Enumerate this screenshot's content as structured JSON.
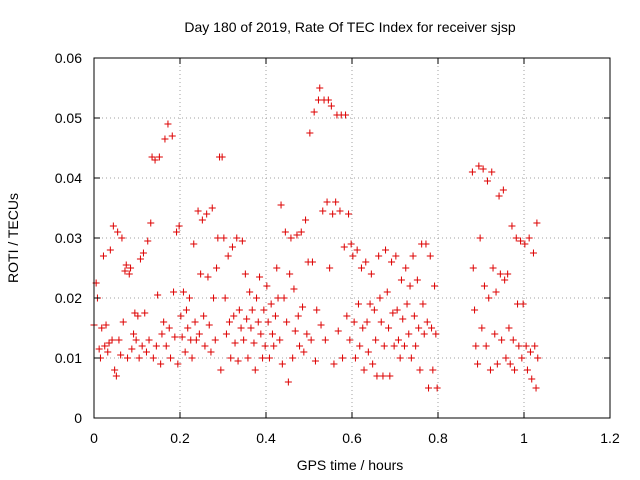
{
  "chart_data": {
    "type": "scatter",
    "title": "Day 180 of 2019, Rate Of TEC Index for receiver sjsp",
    "xlabel": "GPS time / hours",
    "ylabel": "ROTI / TECUs",
    "xlim": [
      0,
      1.2
    ],
    "ylim": [
      0,
      0.06
    ],
    "x_ticks": [
      "0",
      "0.2",
      "0.4",
      "0.6",
      "0.8",
      "1",
      "1.2"
    ],
    "y_ticks": [
      "0",
      "0.01",
      "0.02",
      "0.03",
      "0.04",
      "0.05",
      "0.06"
    ],
    "grid": true,
    "marker": "+",
    "color": "#dd0000",
    "series": [
      {
        "name": "ROTI",
        "points": [
          [
            0.0,
            0.0155
          ],
          [
            0.005,
            0.0225
          ],
          [
            0.008,
            0.02
          ],
          [
            0.012,
            0.0115
          ],
          [
            0.015,
            0.01
          ],
          [
            0.018,
            0.015
          ],
          [
            0.022,
            0.027
          ],
          [
            0.025,
            0.012
          ],
          [
            0.028,
            0.0155
          ],
          [
            0.032,
            0.011
          ],
          [
            0.035,
            0.0125
          ],
          [
            0.038,
            0.028
          ],
          [
            0.042,
            0.013
          ],
          [
            0.045,
            0.032
          ],
          [
            0.048,
            0.008
          ],
          [
            0.052,
            0.007
          ],
          [
            0.055,
            0.031
          ],
          [
            0.058,
            0.013
          ],
          [
            0.062,
            0.0105
          ],
          [
            0.065,
            0.03
          ],
          [
            0.068,
            0.016
          ],
          [
            0.072,
            0.0245
          ],
          [
            0.075,
            0.0255
          ],
          [
            0.078,
            0.01
          ],
          [
            0.082,
            0.024
          ],
          [
            0.085,
            0.025
          ],
          [
            0.088,
            0.0115
          ],
          [
            0.092,
            0.014
          ],
          [
            0.095,
            0.0175
          ],
          [
            0.098,
            0.013
          ],
          [
            0.102,
            0.017
          ],
          [
            0.105,
            0.01
          ],
          [
            0.108,
            0.0265
          ],
          [
            0.112,
            0.012
          ],
          [
            0.115,
            0.0275
          ],
          [
            0.118,
            0.0175
          ],
          [
            0.122,
            0.011
          ],
          [
            0.125,
            0.0295
          ],
          [
            0.128,
            0.013
          ],
          [
            0.132,
            0.0325
          ],
          [
            0.135,
            0.0435
          ],
          [
            0.138,
            0.01
          ],
          [
            0.142,
            0.043
          ],
          [
            0.145,
            0.012
          ],
          [
            0.148,
            0.0205
          ],
          [
            0.152,
            0.0435
          ],
          [
            0.155,
            0.009
          ],
          [
            0.158,
            0.014
          ],
          [
            0.162,
            0.016
          ],
          [
            0.165,
            0.0465
          ],
          [
            0.168,
            0.012
          ],
          [
            0.172,
            0.049
          ],
          [
            0.175,
            0.015
          ],
          [
            0.178,
            0.01
          ],
          [
            0.182,
            0.047
          ],
          [
            0.185,
            0.021
          ],
          [
            0.188,
            0.0135
          ],
          [
            0.192,
            0.031
          ],
          [
            0.195,
            0.009
          ],
          [
            0.198,
            0.032
          ],
          [
            0.202,
            0.017
          ],
          [
            0.205,
            0.0135
          ],
          [
            0.208,
            0.021
          ],
          [
            0.212,
            0.011
          ],
          [
            0.215,
            0.018
          ],
          [
            0.218,
            0.015
          ],
          [
            0.222,
            0.02
          ],
          [
            0.225,
            0.013
          ],
          [
            0.228,
            0.01
          ],
          [
            0.232,
            0.029
          ],
          [
            0.235,
            0.016
          ],
          [
            0.238,
            0.013
          ],
          [
            0.242,
            0.0345
          ],
          [
            0.245,
            0.014
          ],
          [
            0.248,
            0.024
          ],
          [
            0.252,
            0.033
          ],
          [
            0.255,
            0.017
          ],
          [
            0.258,
            0.012
          ],
          [
            0.262,
            0.034
          ],
          [
            0.265,
            0.0235
          ],
          [
            0.268,
            0.0155
          ],
          [
            0.272,
            0.011
          ],
          [
            0.275,
            0.035
          ],
          [
            0.278,
            0.02
          ],
          [
            0.282,
            0.013
          ],
          [
            0.285,
            0.025
          ],
          [
            0.288,
            0.03
          ],
          [
            0.292,
            0.0435
          ],
          [
            0.295,
            0.008
          ],
          [
            0.298,
            0.0435
          ],
          [
            0.302,
            0.03
          ],
          [
            0.305,
            0.02
          ],
          [
            0.308,
            0.014
          ],
          [
            0.312,
            0.027
          ],
          [
            0.315,
            0.016
          ],
          [
            0.318,
            0.01
          ],
          [
            0.322,
            0.0285
          ],
          [
            0.325,
            0.017
          ],
          [
            0.328,
            0.0125
          ],
          [
            0.332,
            0.03
          ],
          [
            0.335,
            0.0095
          ],
          [
            0.338,
            0.018
          ],
          [
            0.342,
            0.015
          ],
          [
            0.345,
            0.0295
          ],
          [
            0.348,
            0.013
          ],
          [
            0.352,
            0.024
          ],
          [
            0.355,
            0.0165
          ],
          [
            0.358,
            0.01
          ],
          [
            0.362,
            0.021
          ],
          [
            0.365,
            0.015
          ],
          [
            0.368,
            0.018
          ],
          [
            0.372,
            0.0125
          ],
          [
            0.375,
            0.008
          ],
          [
            0.378,
            0.02
          ],
          [
            0.382,
            0.016
          ],
          [
            0.385,
            0.0235
          ],
          [
            0.388,
            0.014
          ],
          [
            0.392,
            0.01
          ],
          [
            0.395,
            0.018
          ],
          [
            0.398,
            0.012
          ],
          [
            0.402,
            0.022
          ],
          [
            0.405,
            0.016
          ],
          [
            0.408,
            0.01
          ],
          [
            0.412,
            0.019
          ],
          [
            0.415,
            0.014
          ],
          [
            0.418,
            0.012
          ],
          [
            0.422,
            0.017
          ],
          [
            0.425,
            0.025
          ],
          [
            0.428,
            0.02
          ],
          [
            0.432,
            0.013
          ],
          [
            0.435,
            0.0355
          ],
          [
            0.438,
            0.009
          ],
          [
            0.442,
            0.02
          ],
          [
            0.445,
            0.031
          ],
          [
            0.448,
            0.016
          ],
          [
            0.452,
            0.006
          ],
          [
            0.455,
            0.024
          ],
          [
            0.458,
            0.03
          ],
          [
            0.462,
            0.01
          ],
          [
            0.465,
            0.0215
          ],
          [
            0.468,
            0.0145
          ],
          [
            0.472,
            0.0305
          ],
          [
            0.475,
            0.017
          ],
          [
            0.478,
            0.012
          ],
          [
            0.482,
            0.031
          ],
          [
            0.485,
            0.0185
          ],
          [
            0.488,
            0.011
          ],
          [
            0.492,
            0.033
          ],
          [
            0.495,
            0.014
          ],
          [
            0.498,
            0.026
          ],
          [
            0.502,
            0.0475
          ],
          [
            0.505,
            0.013
          ],
          [
            0.508,
            0.026
          ],
          [
            0.512,
            0.051
          ],
          [
            0.515,
            0.0095
          ],
          [
            0.518,
            0.018
          ],
          [
            0.522,
            0.053
          ],
          [
            0.525,
            0.055
          ],
          [
            0.528,
            0.0155
          ],
          [
            0.532,
            0.0345
          ],
          [
            0.535,
            0.053
          ],
          [
            0.538,
            0.013
          ],
          [
            0.542,
            0.036
          ],
          [
            0.545,
            0.053
          ],
          [
            0.548,
            0.025
          ],
          [
            0.552,
            0.052
          ],
          [
            0.555,
            0.034
          ],
          [
            0.558,
            0.009
          ],
          [
            0.562,
            0.036
          ],
          [
            0.565,
            0.0505
          ],
          [
            0.568,
            0.0145
          ],
          [
            0.572,
            0.0345
          ],
          [
            0.575,
            0.0505
          ],
          [
            0.578,
            0.01
          ],
          [
            0.582,
            0.0285
          ],
          [
            0.585,
            0.0505
          ],
          [
            0.588,
            0.017
          ],
          [
            0.592,
            0.034
          ],
          [
            0.595,
            0.013
          ],
          [
            0.598,
            0.029
          ],
          [
            0.602,
            0.027
          ],
          [
            0.605,
            0.016
          ],
          [
            0.608,
            0.01
          ],
          [
            0.612,
            0.028
          ],
          [
            0.615,
            0.019
          ],
          [
            0.618,
            0.012
          ],
          [
            0.622,
            0.025
          ],
          [
            0.625,
            0.015
          ],
          [
            0.628,
            0.008
          ],
          [
            0.632,
            0.026
          ],
          [
            0.635,
            0.016
          ],
          [
            0.638,
            0.011
          ],
          [
            0.642,
            0.019
          ],
          [
            0.645,
            0.024
          ],
          [
            0.648,
            0.009
          ],
          [
            0.652,
            0.018
          ],
          [
            0.655,
            0.013
          ],
          [
            0.658,
            0.007
          ],
          [
            0.662,
            0.027
          ],
          [
            0.665,
            0.02
          ],
          [
            0.668,
            0.016
          ],
          [
            0.672,
            0.007
          ],
          [
            0.675,
            0.012
          ],
          [
            0.678,
            0.028
          ],
          [
            0.682,
            0.021
          ],
          [
            0.685,
            0.015
          ],
          [
            0.688,
            0.007
          ],
          [
            0.692,
            0.026
          ],
          [
            0.695,
            0.0175
          ],
          [
            0.698,
            0.012
          ],
          [
            0.702,
            0.027
          ],
          [
            0.705,
            0.018
          ],
          [
            0.708,
            0.013
          ],
          [
            0.712,
            0.01
          ],
          [
            0.715,
            0.023
          ],
          [
            0.718,
            0.0165
          ],
          [
            0.722,
            0.012
          ],
          [
            0.725,
            0.025
          ],
          [
            0.728,
            0.019
          ],
          [
            0.732,
            0.014
          ],
          [
            0.735,
            0.022
          ],
          [
            0.738,
            0.01
          ],
          [
            0.742,
            0.027
          ],
          [
            0.745,
            0.017
          ],
          [
            0.748,
            0.012
          ],
          [
            0.752,
            0.023
          ],
          [
            0.755,
            0.015
          ],
          [
            0.758,
            0.008
          ],
          [
            0.762,
            0.029
          ],
          [
            0.765,
            0.019
          ],
          [
            0.768,
            0.014
          ],
          [
            0.772,
            0.029
          ],
          [
            0.775,
            0.016
          ],
          [
            0.778,
            0.005
          ],
          [
            0.782,
            0.027
          ],
          [
            0.785,
            0.015
          ],
          [
            0.788,
            0.008
          ],
          [
            0.792,
            0.022
          ],
          [
            0.795,
            0.014
          ],
          [
            0.798,
            0.005
          ],
          [
            0.88,
            0.041
          ],
          [
            0.882,
            0.025
          ],
          [
            0.885,
            0.018
          ],
          [
            0.888,
            0.012
          ],
          [
            0.892,
            0.009
          ],
          [
            0.895,
            0.042
          ],
          [
            0.898,
            0.03
          ],
          [
            0.902,
            0.015
          ],
          [
            0.905,
            0.0415
          ],
          [
            0.908,
            0.022
          ],
          [
            0.912,
            0.012
          ],
          [
            0.915,
            0.0395
          ],
          [
            0.918,
            0.02
          ],
          [
            0.922,
            0.008
          ],
          [
            0.925,
            0.041
          ],
          [
            0.928,
            0.025
          ],
          [
            0.932,
            0.014
          ],
          [
            0.935,
            0.021
          ],
          [
            0.938,
            0.009
          ],
          [
            0.942,
            0.037
          ],
          [
            0.945,
            0.024
          ],
          [
            0.948,
            0.013
          ],
          [
            0.952,
            0.038
          ],
          [
            0.955,
            0.023
          ],
          [
            0.958,
            0.01
          ],
          [
            0.962,
            0.024
          ],
          [
            0.965,
            0.015
          ],
          [
            0.968,
            0.009
          ],
          [
            0.972,
            0.032
          ],
          [
            0.975,
            0.013
          ],
          [
            0.978,
            0.008
          ],
          [
            0.982,
            0.03
          ],
          [
            0.985,
            0.019
          ],
          [
            0.988,
            0.012
          ],
          [
            0.992,
            0.0295
          ],
          [
            0.995,
            0.01
          ],
          [
            0.998,
            0.019
          ],
          [
            1.002,
            0.029
          ],
          [
            1.005,
            0.012
          ],
          [
            1.008,
            0.008
          ],
          [
            1.012,
            0.03
          ],
          [
            1.015,
            0.011
          ],
          [
            1.018,
            0.0065
          ],
          [
            1.022,
            0.0275
          ],
          [
            1.025,
            0.012
          ],
          [
            1.028,
            0.005
          ],
          [
            1.03,
            0.0325
          ],
          [
            1.032,
            0.01
          ]
        ]
      }
    ]
  }
}
